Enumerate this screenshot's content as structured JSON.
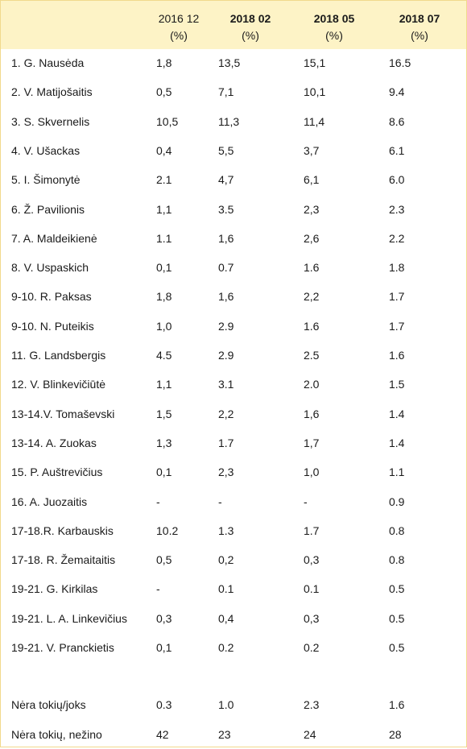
{
  "chart_data": {
    "type": "table",
    "columns": [
      {
        "label": "2016 12",
        "unit": "(%)"
      },
      {
        "label": "2018 02",
        "unit": "(%)"
      },
      {
        "label": "2018 05",
        "unit": "(%)"
      },
      {
        "label": "2018 07",
        "unit": "(%)"
      }
    ],
    "rows": [
      {
        "name": "1. G. Nausėda",
        "values": [
          "1,8",
          "13,5",
          "15,1",
          "16.5"
        ]
      },
      {
        "name": "2. V. Matijošaitis",
        "values": [
          "0,5",
          "7,1",
          "10,1",
          "9.4"
        ]
      },
      {
        "name": "3. S. Skvernelis",
        "values": [
          "10,5",
          "11,3",
          "11,4",
          "8.6"
        ]
      },
      {
        "name": "4. V. Ušackas",
        "values": [
          "0,4",
          "5,5",
          "3,7",
          "6.1"
        ]
      },
      {
        "name": "5. I. Šimonytė",
        "values": [
          "2.1",
          "4,7",
          "6,1",
          "6.0"
        ]
      },
      {
        "name": "6. Ž. Pavilionis",
        "values": [
          "1,1",
          "3.5",
          "2,3",
          "2.3"
        ]
      },
      {
        "name": "7. A. Maldeikienė",
        "values": [
          "1.1",
          "1,6",
          "2,6",
          "2.2"
        ]
      },
      {
        "name": "8. V. Uspaskich",
        "values": [
          "0,1",
          "0.7",
          "1.6",
          "1.8"
        ]
      },
      {
        "name": "9-10. R. Paksas",
        "values": [
          "1,8",
          "1,6",
          "2,2",
          "1.7"
        ]
      },
      {
        "name": "9-10. N. Puteikis",
        "values": [
          "1,0",
          "2.9",
          "1.6",
          "1.7"
        ]
      },
      {
        "name": "11. G. Landsbergis",
        "values": [
          "4.5",
          "2.9",
          "2.5",
          "1.6"
        ]
      },
      {
        "name": "12. V. Blinkevičiūtė",
        "values": [
          "1,1",
          "3.1",
          "2.0",
          "1.5"
        ]
      },
      {
        "name": "13-14.V. Tomaševski",
        "values": [
          "1,5",
          "2,2",
          "1,6",
          "1.4"
        ]
      },
      {
        "name": "13-14. A. Zuokas",
        "values": [
          "1,3",
          "1.7",
          "1,7",
          "1.4"
        ]
      },
      {
        "name": "15. P. Auštrevičius",
        "values": [
          "0,1",
          "2,3",
          "1,0",
          "1.1"
        ]
      },
      {
        "name": "16. A. Juozaitis",
        "values": [
          "-",
          "-",
          "-",
          "0.9"
        ]
      },
      {
        "name": "17-18.R. Karbauskis",
        "values": [
          "10.2",
          "1.3",
          "1.7",
          "0.8"
        ]
      },
      {
        "name": "17-18. R. Žemaitaitis",
        "values": [
          "0,5",
          "0,2",
          "0,3",
          "0.8"
        ]
      },
      {
        "name": "19-21. G. Kirkilas",
        "values": [
          "-",
          "0.1",
          "0.1",
          "0.5"
        ]
      },
      {
        "name": "19-21. L. A. Linkevičius",
        "values": [
          "0,3",
          "0,4",
          "0,3",
          "0.5"
        ]
      },
      {
        "name": "19-21. V. Pranckietis",
        "values": [
          "0,1",
          "0.2",
          "0.2",
          "0.5"
        ]
      }
    ],
    "footer_rows": [
      {
        "name": "Nėra tokių/joks",
        "values": [
          "0.3",
          "1.0",
          "2.3",
          "1.6"
        ]
      },
      {
        "name": "Nėra tokių, nežino",
        "values": [
          "42",
          "23",
          "24",
          "28"
        ]
      }
    ],
    "header_bg": "#fdf3c6",
    "border_color": "#f1d98c"
  }
}
